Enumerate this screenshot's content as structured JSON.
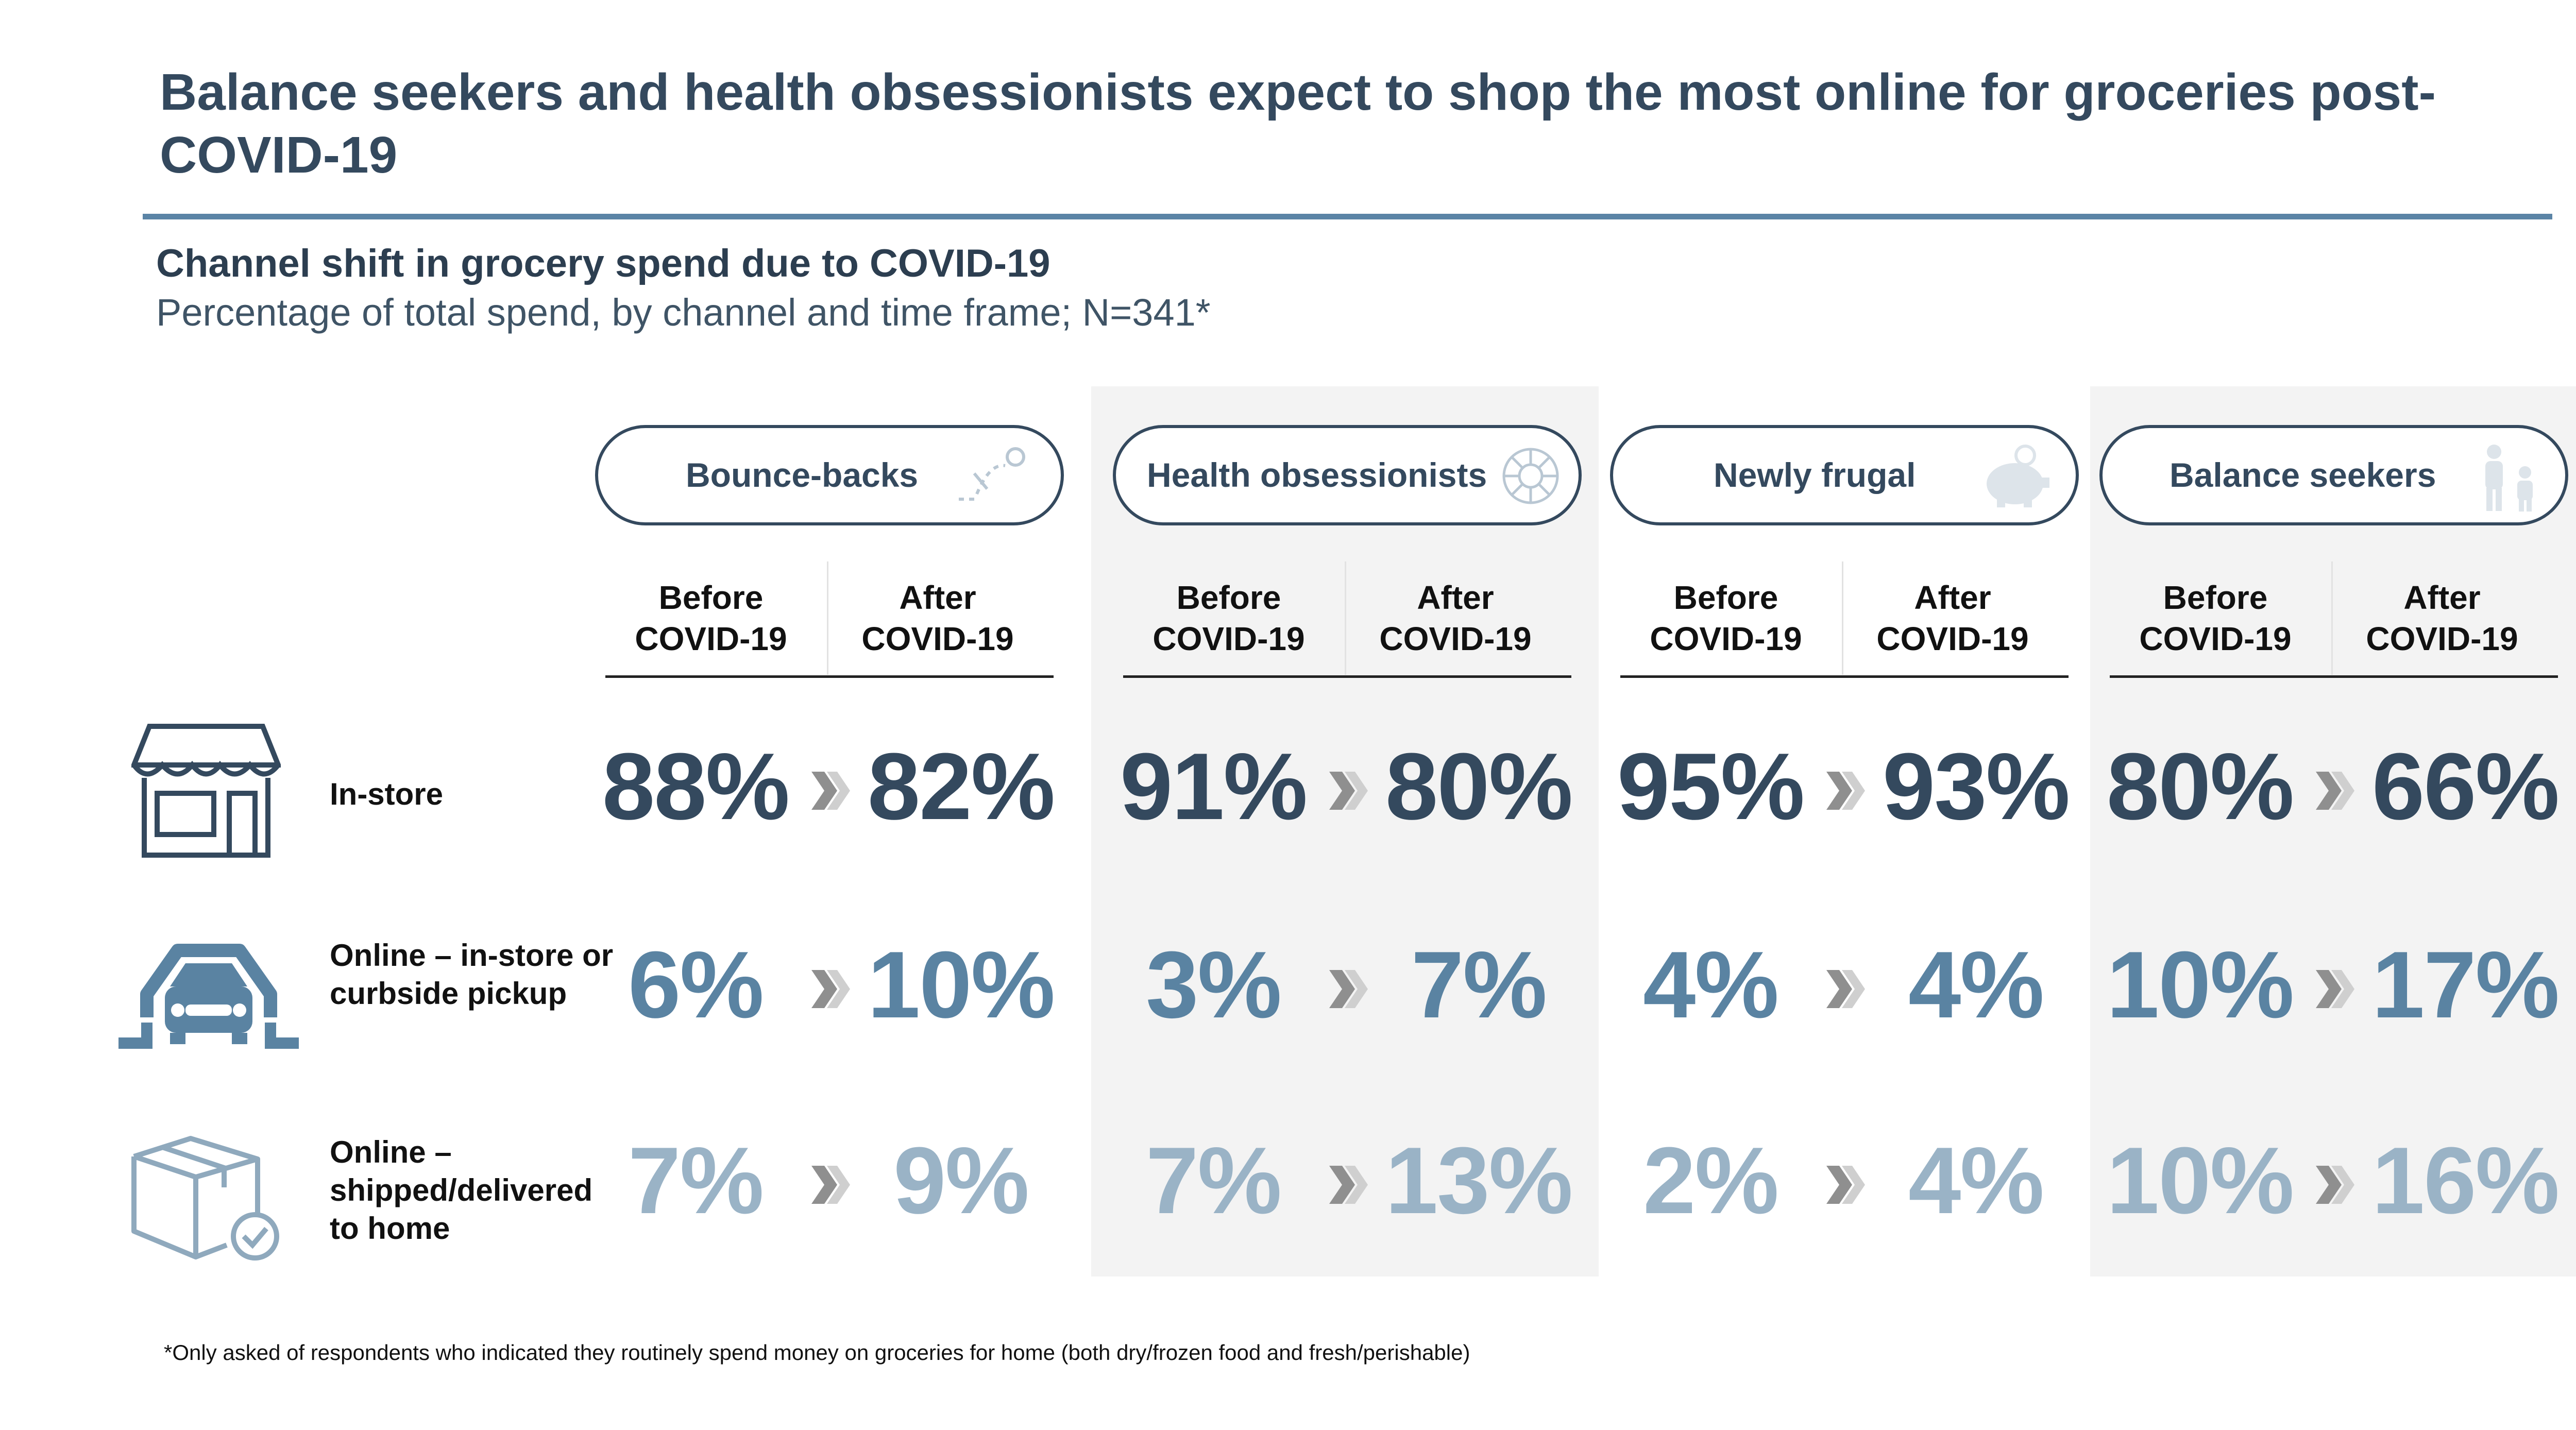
{
  "title": "Balance seekers and health obsessionists expect to shop the most online for groceries post-COVID-19",
  "chart_data": {
    "type": "table",
    "title": "Channel shift in grocery spend due to COVID-19",
    "subtitle": "Percentage of total spend, by channel and time frame; N=341*",
    "column_headers": {
      "before_line1": "Before",
      "before_line2": "COVID-19",
      "after_line1": "After",
      "after_line2": "COVID-19"
    },
    "rows": [
      {
        "label": "In-store",
        "icon": "storefront-icon"
      },
      {
        "label": "Online – in-store or curbside pickup",
        "icon": "car-pickup-icon"
      },
      {
        "label": "Online – shipped/delivered to home",
        "icon": "package-delivered-icon"
      }
    ],
    "segments": [
      {
        "name": "Bounce-backs",
        "icon": "bounce-ball-icon",
        "values": [
          {
            "before": "88%",
            "after": "82%"
          },
          {
            "before": "6%",
            "after": "10%"
          },
          {
            "before": "7%",
            "after": "9%"
          }
        ]
      },
      {
        "name": "Health obsessionists",
        "icon": "virus-icon",
        "values": [
          {
            "before": "91%",
            "after": "80%"
          },
          {
            "before": "3%",
            "after": "7%"
          },
          {
            "before": "7%",
            "after": "13%"
          }
        ]
      },
      {
        "name": "Newly frugal",
        "icon": "piggy-bank-icon",
        "values": [
          {
            "before": "95%",
            "after": "93%"
          },
          {
            "before": "4%",
            "after": "4%"
          },
          {
            "before": "2%",
            "after": "4%"
          }
        ]
      },
      {
        "name": "Balance seekers",
        "icon": "family-icon",
        "values": [
          {
            "before": "80%",
            "after": "66%"
          },
          {
            "before": "10%",
            "after": "17%"
          },
          {
            "before": "10%",
            "after": "16%"
          }
        ]
      }
    ]
  },
  "footnote": "*Only asked of respondents who indicated they routinely spend money on groceries for home (both dry/frozen food and fresh/perishable)",
  "colors": {
    "dark": "#34495e",
    "mid": "#5a83a2",
    "light": "#9ab3c6",
    "rule": "#5b84a6",
    "shade": "#f3f3f3"
  }
}
